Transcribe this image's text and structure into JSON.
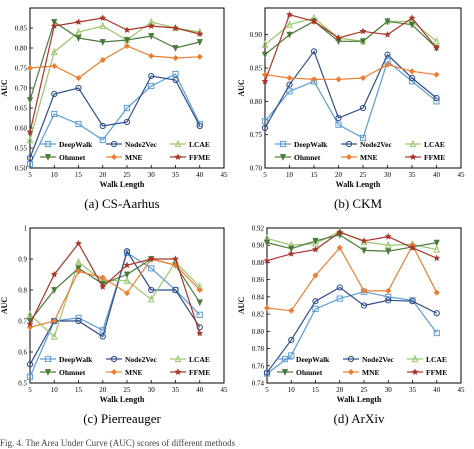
{
  "footer_text": "Fig. 4. The Area Under Curve (AUC) scores of different methods",
  "chart_data": [
    {
      "type": "line",
      "caption": "(a)  CS-Aarhus",
      "xlabel": "Walk Length",
      "ylabel": "AUC",
      "xlim": [
        5,
        45
      ],
      "ylim": [
        0.5,
        0.9
      ],
      "xticks": [
        5,
        10,
        15,
        20,
        25,
        30,
        35,
        40,
        45
      ],
      "yticks": [
        0.5,
        0.55,
        0.6,
        0.65,
        0.7,
        0.75,
        0.8,
        0.85
      ],
      "ytick_labels": [
        "0.50",
        "0.55",
        "0.60",
        "0.65",
        "0.70",
        "0.75",
        "0.80",
        "0.85"
      ],
      "x": [
        5,
        10,
        15,
        20,
        25,
        30,
        35,
        40
      ],
      "series": [
        {
          "name": "DeepWalk",
          "color": "#5b9bd5",
          "marker": "square",
          "values": [
            0.51,
            0.635,
            0.61,
            0.57,
            0.65,
            0.705,
            0.735,
            0.61
          ]
        },
        {
          "name": "Node2Vec",
          "color": "#2f4b8a",
          "marker": "circle",
          "values": [
            0.525,
            0.685,
            0.7,
            0.605,
            0.615,
            0.73,
            0.72,
            0.605
          ]
        },
        {
          "name": "LCAE",
          "color": "#9ac46b",
          "marker": "triangle",
          "values": [
            0.57,
            0.79,
            0.84,
            0.855,
            0.82,
            0.865,
            0.85,
            0.84
          ]
        },
        {
          "name": "Ohmnet",
          "color": "#4a7a3a",
          "marker": "tri-down",
          "values": [
            0.67,
            0.865,
            0.825,
            0.815,
            0.82,
            0.83,
            0.8,
            0.815
          ]
        },
        {
          "name": "MNE",
          "color": "#ed7d31",
          "marker": "diamond",
          "values": [
            0.75,
            0.755,
            0.725,
            0.77,
            0.805,
            0.78,
            0.775,
            0.778
          ]
        },
        {
          "name": "FFME",
          "color": "#a8342a",
          "marker": "star",
          "values": [
            0.59,
            0.855,
            0.865,
            0.875,
            0.845,
            0.855,
            0.85,
            0.835
          ]
        }
      ]
    },
    {
      "type": "line",
      "caption": "(b)  CKM",
      "xlabel": "Walk Length",
      "ylabel": "AUC",
      "xlim": [
        5,
        45
      ],
      "ylim": [
        0.7,
        0.94
      ],
      "xticks": [
        5,
        10,
        15,
        20,
        25,
        30,
        35,
        40,
        45
      ],
      "yticks": [
        0.7,
        0.75,
        0.8,
        0.85,
        0.9
      ],
      "ytick_labels": [
        "0.70",
        "0.75",
        "0.80",
        "0.85",
        "0.90"
      ],
      "x": [
        5,
        10,
        15,
        20,
        25,
        30,
        35,
        40
      ],
      "series": [
        {
          "name": "DeepWalk",
          "color": "#5b9bd5",
          "marker": "square",
          "values": [
            0.77,
            0.815,
            0.83,
            0.765,
            0.745,
            0.86,
            0.83,
            0.8
          ]
        },
        {
          "name": "Node2Vec",
          "color": "#2f4b8a",
          "marker": "circle",
          "values": [
            0.76,
            0.825,
            0.875,
            0.775,
            0.79,
            0.87,
            0.835,
            0.805
          ]
        },
        {
          "name": "LCAE",
          "color": "#9ac46b",
          "marker": "triangle",
          "values": [
            0.885,
            0.915,
            0.925,
            0.895,
            0.89,
            0.92,
            0.92,
            0.89
          ]
        },
        {
          "name": "Ohmnet",
          "color": "#4a7a3a",
          "marker": "tri-down",
          "values": [
            0.87,
            0.9,
            0.92,
            0.89,
            0.89,
            0.92,
            0.915,
            0.88
          ]
        },
        {
          "name": "MNE",
          "color": "#ed7d31",
          "marker": "diamond",
          "values": [
            0.84,
            0.835,
            0.833,
            0.833,
            0.835,
            0.855,
            0.845,
            0.84
          ]
        },
        {
          "name": "FFME",
          "color": "#a8342a",
          "marker": "star",
          "values": [
            0.83,
            0.93,
            0.92,
            0.895,
            0.905,
            0.9,
            0.925,
            0.88
          ]
        }
      ]
    },
    {
      "type": "line",
      "caption": "(c)  Pierreauger",
      "xlabel": "Walk Length",
      "ylabel": "AUC",
      "xlim": [
        5,
        45
      ],
      "ylim": [
        0.5,
        1.0
      ],
      "xticks": [
        5,
        10,
        15,
        20,
        25,
        30,
        35,
        40,
        45
      ],
      "yticks": [
        0.5,
        0.6,
        0.7,
        0.8,
        0.9,
        1.0
      ],
      "ytick_labels": [
        "0.5",
        "0.6",
        "0.7",
        "0.8",
        "0.9",
        "1"
      ],
      "x": [
        5,
        10,
        15,
        20,
        25,
        30,
        35,
        40
      ],
      "series": [
        {
          "name": "DeepWalk",
          "color": "#5b9bd5",
          "marker": "square",
          "values": [
            0.52,
            0.7,
            0.71,
            0.67,
            0.92,
            0.87,
            0.8,
            0.72
          ]
        },
        {
          "name": "Node2Vec",
          "color": "#2f4b8a",
          "marker": "circle",
          "values": [
            0.56,
            0.7,
            0.7,
            0.65,
            0.925,
            0.8,
            0.8,
            0.68
          ]
        },
        {
          "name": "LCAE",
          "color": "#9ac46b",
          "marker": "triangle",
          "values": [
            0.72,
            0.65,
            0.89,
            0.83,
            0.83,
            0.77,
            0.89,
            0.81
          ]
        },
        {
          "name": "Ohmnet",
          "color": "#4a7a3a",
          "marker": "tri-down",
          "values": [
            0.7,
            0.8,
            0.87,
            0.82,
            0.85,
            0.9,
            0.88,
            0.76
          ]
        },
        {
          "name": "MNE",
          "color": "#ed7d31",
          "marker": "diamond",
          "values": [
            0.68,
            0.7,
            0.86,
            0.84,
            0.79,
            0.9,
            0.88,
            0.8
          ]
        },
        {
          "name": "FFME",
          "color": "#a8342a",
          "marker": "star",
          "values": [
            0.69,
            0.85,
            0.95,
            0.81,
            0.88,
            0.9,
            0.9,
            0.66
          ]
        }
      ]
    },
    {
      "type": "line",
      "caption": "(d)  ArXiv",
      "xlabel": "Walk Length",
      "ylabel": "AUC",
      "xlim": [
        5,
        45
      ],
      "ylim": [
        0.74,
        0.92
      ],
      "xticks": [
        5,
        10,
        15,
        20,
        25,
        30,
        35,
        40,
        45
      ],
      "yticks": [
        0.74,
        0.76,
        0.78,
        0.8,
        0.82,
        0.84,
        0.86,
        0.88,
        0.9,
        0.92
      ],
      "ytick_labels": [
        "0.74",
        "0.76",
        "0.78",
        "0.80",
        "0.82",
        "0.84",
        "0.86",
        "0.88",
        "0.90",
        "0.92"
      ],
      "x": [
        5,
        10,
        15,
        20,
        25,
        30,
        35,
        40
      ],
      "series": [
        {
          "name": "DeepWalk",
          "color": "#5b9bd5",
          "marker": "square",
          "values": [
            0.751,
            0.772,
            0.826,
            0.838,
            0.846,
            0.84,
            0.836,
            0.798
          ]
        },
        {
          "name": "Node2Vec",
          "color": "#2f4b8a",
          "marker": "circle",
          "values": [
            0.752,
            0.79,
            0.835,
            0.851,
            0.83,
            0.836,
            0.835,
            0.821
          ]
        },
        {
          "name": "LCAE",
          "color": "#9ac46b",
          "marker": "triangle",
          "values": [
            0.908,
            0.9,
            0.902,
            0.916,
            0.904,
            0.9,
            0.901,
            0.895
          ]
        },
        {
          "name": "Ohmnet",
          "color": "#4a7a3a",
          "marker": "tri-down",
          "values": [
            0.903,
            0.896,
            0.905,
            0.912,
            0.894,
            0.893,
            0.898,
            0.903
          ]
        },
        {
          "name": "MNE",
          "color": "#ed7d31",
          "marker": "diamond",
          "values": [
            0.827,
            0.824,
            0.865,
            0.897,
            0.847,
            0.847,
            0.9,
            0.845
          ]
        },
        {
          "name": "FFME",
          "color": "#a8342a",
          "marker": "star",
          "values": [
            0.882,
            0.89,
            0.895,
            0.915,
            0.905,
            0.91,
            0.897,
            0.885
          ]
        }
      ]
    }
  ]
}
